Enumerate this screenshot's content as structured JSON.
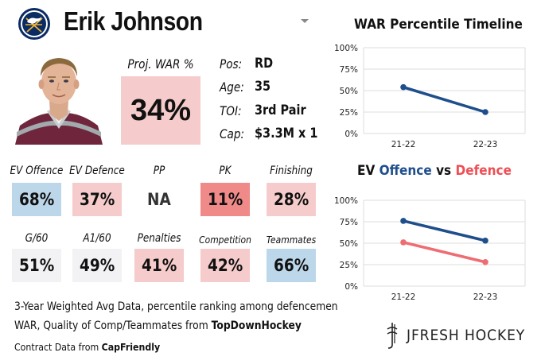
{
  "header": {
    "player_name": "Erik Johnson",
    "team_logo_icon": "sabres-logo-icon"
  },
  "colors": {
    "off_blue": "#1f4e8c",
    "def_red": "#ee6d72",
    "good_bg": "#bcd6ea",
    "bad_bg": "#f5cccb",
    "worse_bg": "#ef8a89",
    "neutral_bg": "#f2f2f4"
  },
  "proj_war": {
    "label": "Proj. WAR %",
    "value": "34%"
  },
  "bio": [
    {
      "label": "Pos:",
      "value": "RD"
    },
    {
      "label": "Age:",
      "value": "35"
    },
    {
      "label": "TOI:",
      "value": "3rd Pair"
    },
    {
      "label": "Cap:",
      "value": "$3.3M x 1"
    }
  ],
  "stats_row1": [
    {
      "label": "EV Offence",
      "value": "68%",
      "tone": "good"
    },
    {
      "label": "EV Defence",
      "value": "37%",
      "tone": "bad"
    },
    {
      "label": "PP",
      "value": "NA",
      "tone": "none"
    },
    {
      "label": "PK",
      "value": "11%",
      "tone": "worse"
    },
    {
      "label": "Finishing",
      "value": "28%",
      "tone": "bad"
    }
  ],
  "stats_row2": [
    {
      "label": "G/60",
      "value": "51%",
      "tone": "neutral"
    },
    {
      "label": "A1/60",
      "value": "49%",
      "tone": "neutral"
    },
    {
      "label": "Penalties",
      "value": "41%",
      "tone": "bad"
    },
    {
      "label": "Competition",
      "value": "42%",
      "tone": "bad"
    },
    {
      "label": "Teammates",
      "value": "66%",
      "tone": "good"
    }
  ],
  "footer": {
    "line1": "3-Year Weighted Avg Data, percentile ranking among defencemen",
    "line2_prefix": "WAR, Quality of Comp/Teammates from ",
    "line2_source": "TopDownHockey",
    "line3_prefix": "Contract Data from ",
    "line3_source": "CapFriendly"
  },
  "brand": {
    "text": "JFRESH HOCKEY",
    "icon": "jfresh-logo-icon"
  },
  "chart_data": [
    {
      "type": "line",
      "title": "WAR Percentile Timeline",
      "categories": [
        "21-22",
        "22-23"
      ],
      "yticks": [
        "100%",
        "75%",
        "50%",
        "25%",
        "0%"
      ],
      "ylim": [
        0,
        100
      ],
      "grid": true,
      "series": [
        {
          "values": [
            54,
            25
          ],
          "color": "#1f4e8c"
        }
      ]
    },
    {
      "type": "line",
      "title_parts": [
        "EV ",
        "Offence",
        " vs ",
        "Defence"
      ],
      "categories": [
        "21-22",
        "22-23"
      ],
      "yticks": [
        "100%",
        "75%",
        "50%",
        "25%",
        "0%"
      ],
      "ylim": [
        0,
        100
      ],
      "grid": true,
      "series": [
        {
          "name": "Offence",
          "values": [
            76,
            53
          ],
          "color": "#1f4e8c"
        },
        {
          "name": "Defence",
          "values": [
            51,
            28
          ],
          "color": "#ee6d72"
        }
      ]
    }
  ]
}
